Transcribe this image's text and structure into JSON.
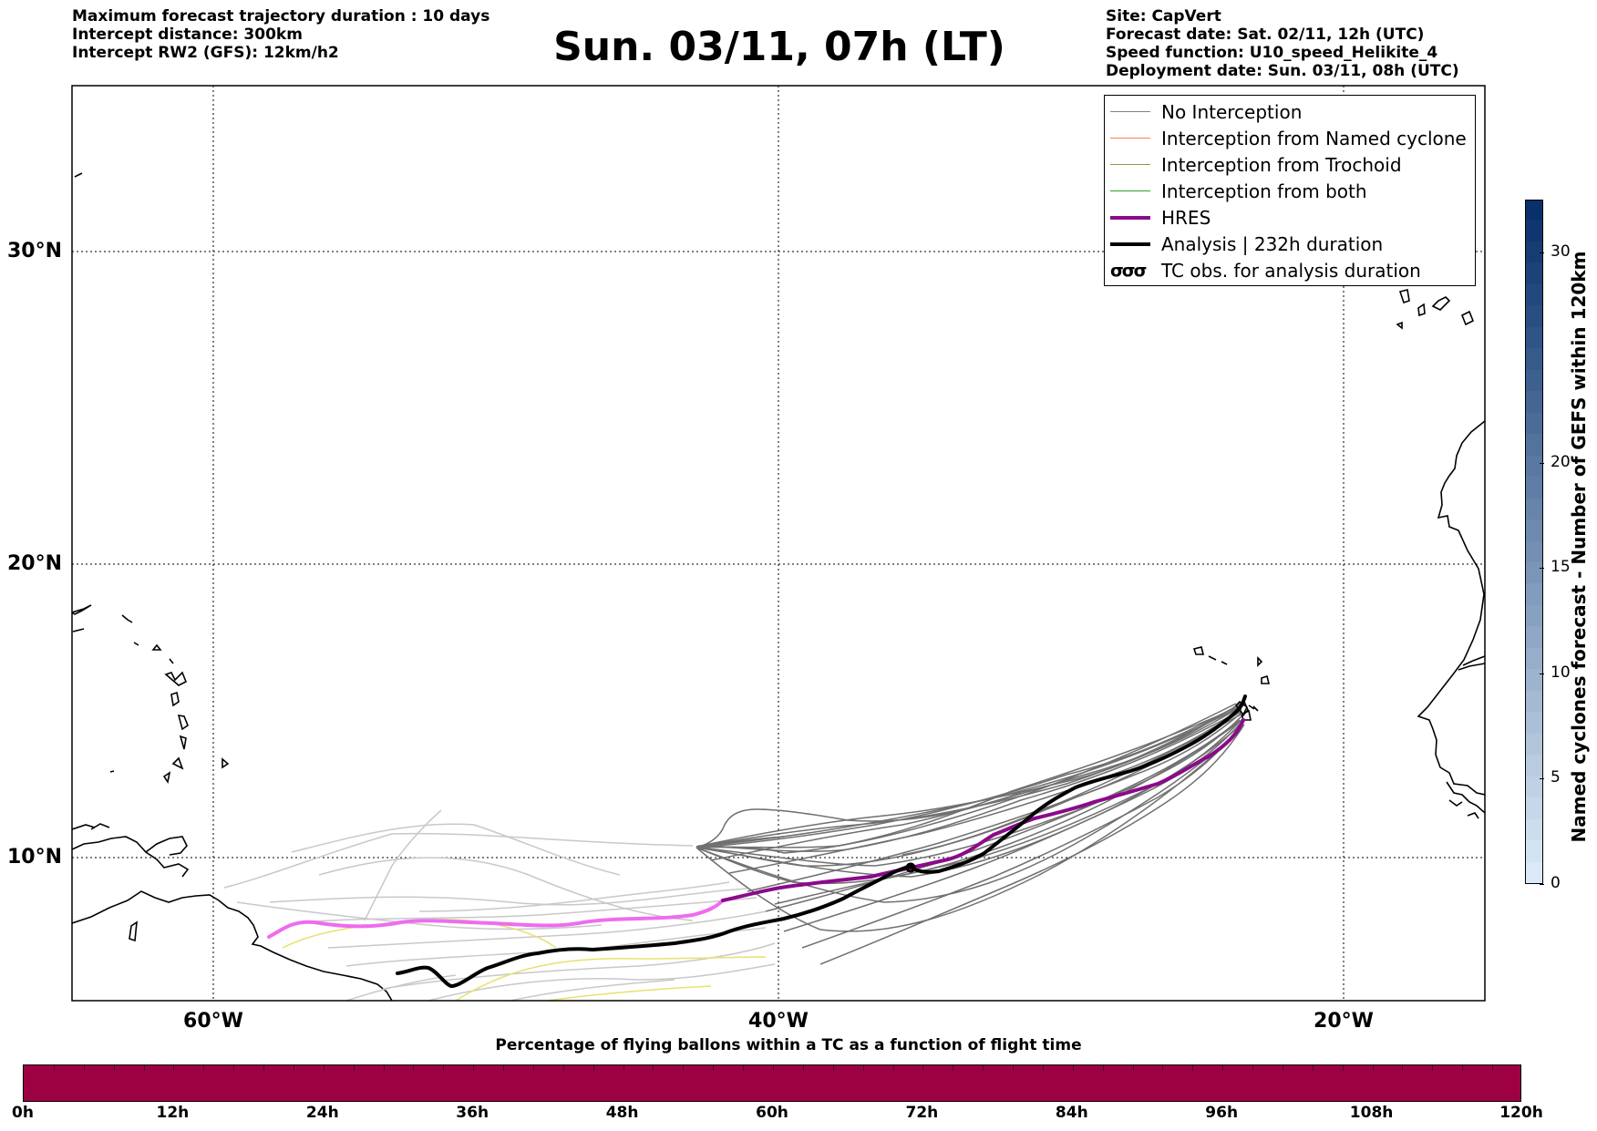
{
  "header_left": [
    "Maximum forecast trajectory duration : 10 days",
    "Intercept distance: 300km",
    "Intercept RW2 (GFS):  12km/h2"
  ],
  "title": "Sun. 03/11, 07h (LT)",
  "header_right": [
    "Site: CapVert",
    "Forecast date: Sat. 02/11, 12h (UTC)",
    "Speed function: U10_speed_Helikite_4",
    "Deployment date: Sun. 03/11, 08h (UTC)"
  ],
  "map": {
    "lat_labels": [
      "30°N",
      "20°N",
      "10°N"
    ],
    "lon_labels": [
      "60°W",
      "40°W",
      "20°W"
    ]
  },
  "legend": [
    {
      "label": "No Interception",
      "color": "#808080",
      "width": 1.5,
      "icon": "line"
    },
    {
      "label": "Interception from Named cyclone",
      "color": "#ff7f50",
      "width": 1.5,
      "icon": "line"
    },
    {
      "label": "Interception from Trochoid",
      "color": "#9c9240",
      "width": 1.5,
      "icon": "line"
    },
    {
      "label": "Interception from both",
      "color": "#2ca02c",
      "width": 1.5,
      "icon": "line"
    },
    {
      "label": "HRES",
      "color": "#8b0a8b",
      "width": 4,
      "icon": "line"
    },
    {
      "label": "Analysis | 232h duration",
      "color": "#000000",
      "width": 4,
      "icon": "line"
    },
    {
      "label": "TC obs. for analysis duration",
      "color": "#000000",
      "icon": "cyclone-symbols"
    }
  ],
  "colorbar_right": {
    "label": "Named cyclones forecast - Number of GEFS within 120km",
    "ticks": [
      "0",
      "5",
      "10",
      "15",
      "20",
      "30"
    ],
    "color_low": "#dbe9f6",
    "color_high": "#08306b"
  },
  "colorbar_bottom": {
    "title": "Percentage of flying ballons within a TC as a function of flight time",
    "ticks": [
      "0h",
      "12h",
      "24h",
      "36h",
      "48h",
      "60h",
      "72h",
      "84h",
      "96h",
      "108h",
      "120h"
    ],
    "fill_color": "#9e0142"
  }
}
